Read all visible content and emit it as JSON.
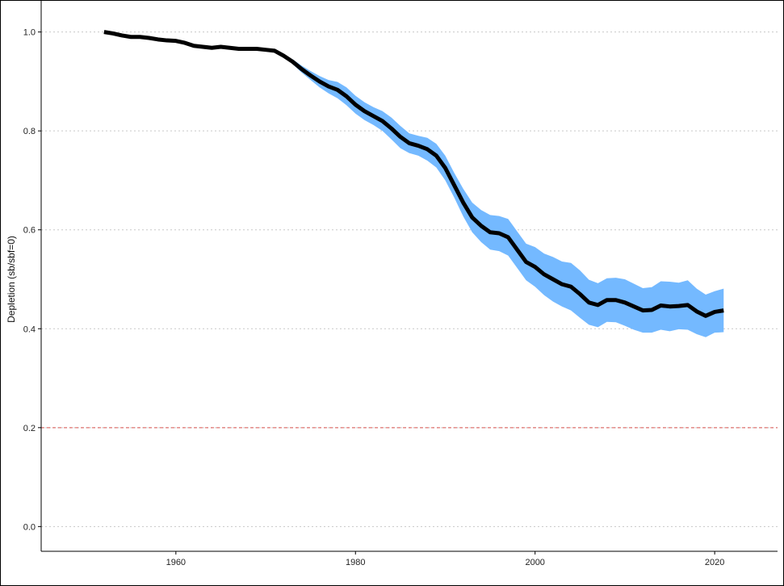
{
  "chart_data": {
    "type": "line",
    "title": "",
    "xlabel": "",
    "ylabel": "Depletion (sb/sbf=0)",
    "xlim": [
      1945,
      2027
    ],
    "ylim": [
      -0.05,
      1.05
    ],
    "x_ticks": [
      1960,
      1980,
      2000,
      2020
    ],
    "y_ticks": [
      0.0,
      0.2,
      0.4,
      0.6,
      0.8,
      1.0
    ],
    "x_tick_labels": [
      "1960",
      "1980",
      "2000",
      "2020"
    ],
    "y_tick_labels": [
      "0.0",
      "0.2",
      "0.4",
      "0.6",
      "0.8",
      "1.0"
    ],
    "grid": "horizontal dotted",
    "reference_line": {
      "y": 0.2,
      "style": "dashed",
      "color": "#d9534f"
    },
    "series": [
      {
        "line_color": "#000000",
        "band_color": "#74b9ff",
        "x": [
          1952,
          1953,
          1954,
          1955,
          1956,
          1957,
          1958,
          1959,
          1960,
          1961,
          1962,
          1963,
          1964,
          1965,
          1966,
          1967,
          1968,
          1969,
          1970,
          1971,
          1972,
          1973,
          1974,
          1975,
          1976,
          1977,
          1978,
          1979,
          1980,
          1981,
          1982,
          1983,
          1984,
          1985,
          1986,
          1987,
          1988,
          1989,
          1990,
          1991,
          1992,
          1993,
          1994,
          1995,
          1996,
          1997,
          1998,
          1999,
          2000,
          2001,
          2002,
          2003,
          2004,
          2005,
          2006,
          2007,
          2008,
          2009,
          2010,
          2011,
          2012,
          2013,
          2014,
          2015,
          2016,
          2017,
          2018,
          2019,
          2020,
          2021
        ],
        "y": [
          1.0,
          0.997,
          0.993,
          0.99,
          0.99,
          0.988,
          0.985,
          0.983,
          0.982,
          0.978,
          0.972,
          0.97,
          0.968,
          0.97,
          0.968,
          0.966,
          0.966,
          0.966,
          0.964,
          0.962,
          0.952,
          0.94,
          0.925,
          0.912,
          0.9,
          0.89,
          0.883,
          0.87,
          0.853,
          0.84,
          0.83,
          0.82,
          0.805,
          0.788,
          0.775,
          0.77,
          0.763,
          0.75,
          0.725,
          0.69,
          0.655,
          0.625,
          0.608,
          0.595,
          0.593,
          0.585,
          0.56,
          0.535,
          0.525,
          0.51,
          0.5,
          0.49,
          0.485,
          0.47,
          0.453,
          0.448,
          0.458,
          0.458,
          0.453,
          0.445,
          0.437,
          0.438,
          0.447,
          0.445,
          0.446,
          0.448,
          0.435,
          0.426,
          0.434,
          0.437
        ],
        "lower": [
          1.0,
          0.997,
          0.993,
          0.99,
          0.99,
          0.988,
          0.985,
          0.983,
          0.982,
          0.978,
          0.972,
          0.97,
          0.968,
          0.97,
          0.968,
          0.966,
          0.966,
          0.966,
          0.964,
          0.962,
          0.95,
          0.935,
          0.918,
          0.903,
          0.888,
          0.876,
          0.866,
          0.852,
          0.835,
          0.822,
          0.812,
          0.8,
          0.783,
          0.765,
          0.755,
          0.75,
          0.74,
          0.726,
          0.7,
          0.665,
          0.627,
          0.595,
          0.575,
          0.56,
          0.557,
          0.548,
          0.523,
          0.498,
          0.485,
          0.468,
          0.455,
          0.445,
          0.437,
          0.422,
          0.408,
          0.403,
          0.414,
          0.413,
          0.406,
          0.398,
          0.392,
          0.392,
          0.398,
          0.395,
          0.399,
          0.398,
          0.389,
          0.383,
          0.392,
          0.393
        ],
        "upper": [
          1.0,
          0.997,
          0.993,
          0.99,
          0.99,
          0.988,
          0.985,
          0.983,
          0.982,
          0.978,
          0.972,
          0.97,
          0.968,
          0.97,
          0.968,
          0.966,
          0.966,
          0.966,
          0.964,
          0.962,
          0.954,
          0.945,
          0.932,
          0.921,
          0.911,
          0.903,
          0.899,
          0.888,
          0.871,
          0.858,
          0.848,
          0.84,
          0.827,
          0.81,
          0.795,
          0.79,
          0.786,
          0.774,
          0.75,
          0.715,
          0.683,
          0.655,
          0.64,
          0.63,
          0.628,
          0.622,
          0.597,
          0.572,
          0.565,
          0.552,
          0.545,
          0.536,
          0.533,
          0.518,
          0.499,
          0.492,
          0.502,
          0.503,
          0.5,
          0.491,
          0.482,
          0.484,
          0.496,
          0.495,
          0.493,
          0.498,
          0.481,
          0.469,
          0.476,
          0.481
        ]
      }
    ]
  }
}
